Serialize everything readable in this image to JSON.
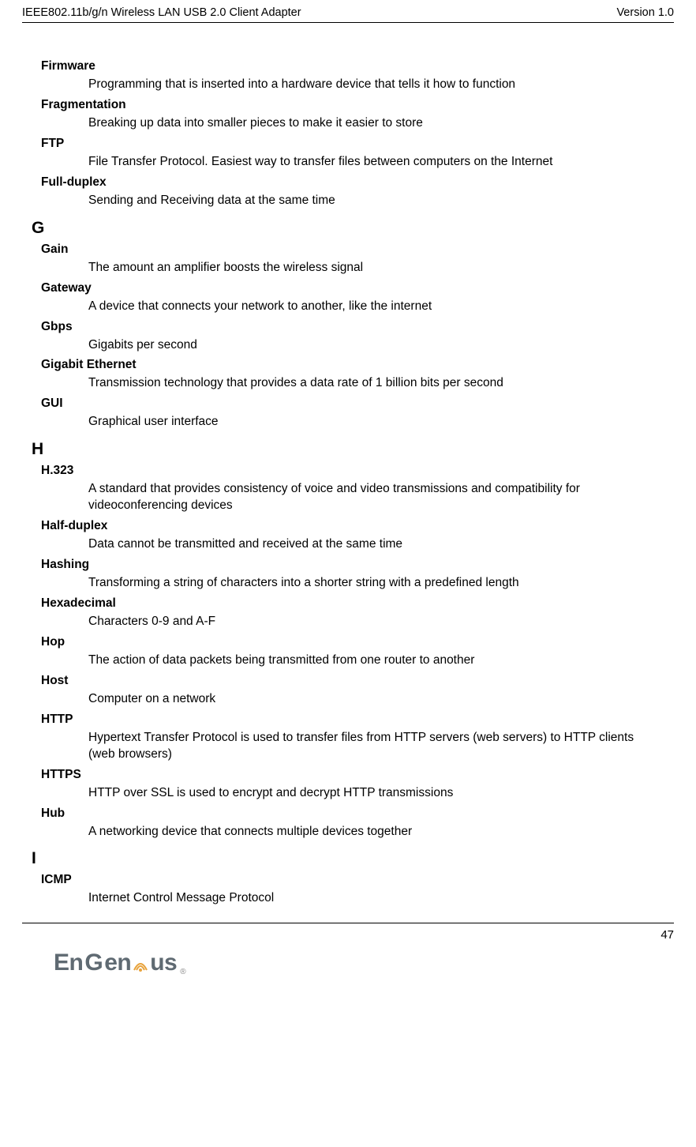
{
  "header": {
    "left": "IEEE802.11b/g/n Wireless LAN USB 2.0 Client Adapter",
    "right": "Version 1.0"
  },
  "footer": {
    "page": "47"
  },
  "logo": {
    "text_left": "En",
    "text_mid": "G",
    "text_right": "en",
    "text_end": "us",
    "reg": "®"
  },
  "entries": [
    {
      "type": "term",
      "text": "Firmware"
    },
    {
      "type": "def",
      "text": "Programming that is inserted into a hardware device that tells it how to function"
    },
    {
      "type": "term",
      "text": "Fragmentation"
    },
    {
      "type": "def",
      "text": "Breaking up data into smaller pieces to make it easier to store"
    },
    {
      "type": "term",
      "text": "FTP"
    },
    {
      "type": "def",
      "text": "File Transfer Protocol. Easiest way to transfer files between computers on the Internet"
    },
    {
      "type": "term",
      "text": "Full-duplex"
    },
    {
      "type": "def",
      "text": "Sending and Receiving data at the same time"
    },
    {
      "type": "letter",
      "text": "G"
    },
    {
      "type": "term",
      "text": "Gain"
    },
    {
      "type": "def",
      "text": "The amount an amplifier boosts the wireless signal"
    },
    {
      "type": "term",
      "text": "Gateway"
    },
    {
      "type": "def",
      "text": "A device that connects your network to another, like the internet"
    },
    {
      "type": "term",
      "text": "Gbps"
    },
    {
      "type": "def",
      "text": "Gigabits per second"
    },
    {
      "type": "term",
      "text": "Gigabit Ethernet"
    },
    {
      "type": "def",
      "text": "Transmission technology that provides a data rate of 1 billion bits per second"
    },
    {
      "type": "term",
      "text": "GUI"
    },
    {
      "type": "def",
      "text": "Graphical user interface"
    },
    {
      "type": "letter",
      "text": "H"
    },
    {
      "type": "term",
      "text": "H.323"
    },
    {
      "type": "def",
      "text": "A standard that provides consistency of voice and video transmissions and compatibility for videoconferencing devices"
    },
    {
      "type": "term",
      "text": "Half-duplex"
    },
    {
      "type": "def",
      "text": "Data cannot be transmitted and received at the same time"
    },
    {
      "type": "term",
      "text": "Hashing"
    },
    {
      "type": "def",
      "text": "Transforming a string of characters into a shorter string with a predefined length"
    },
    {
      "type": "term",
      "text": "Hexadecimal"
    },
    {
      "type": "def",
      "text": "Characters 0-9 and A-F"
    },
    {
      "type": "term",
      "text": "Hop"
    },
    {
      "type": "def",
      "text": "The action of data packets being transmitted from one router to another"
    },
    {
      "type": "term",
      "text": "Host"
    },
    {
      "type": "def",
      "text": "Computer on a network"
    },
    {
      "type": "term",
      "text": "HTTP"
    },
    {
      "type": "def",
      "text": "Hypertext Transfer Protocol is used to transfer files from HTTP servers (web servers) to HTTP clients (web browsers)"
    },
    {
      "type": "term",
      "text": "HTTPS"
    },
    {
      "type": "def",
      "text": "HTTP over SSL is used to encrypt and decrypt HTTP transmissions"
    },
    {
      "type": "term",
      "text": "Hub"
    },
    {
      "type": "def",
      "text": "A networking device that connects multiple devices together"
    },
    {
      "type": "letter",
      "text": "I"
    },
    {
      "type": "term",
      "text": "ICMP"
    },
    {
      "type": "def",
      "text": "Internet Control Message Protocol"
    }
  ]
}
